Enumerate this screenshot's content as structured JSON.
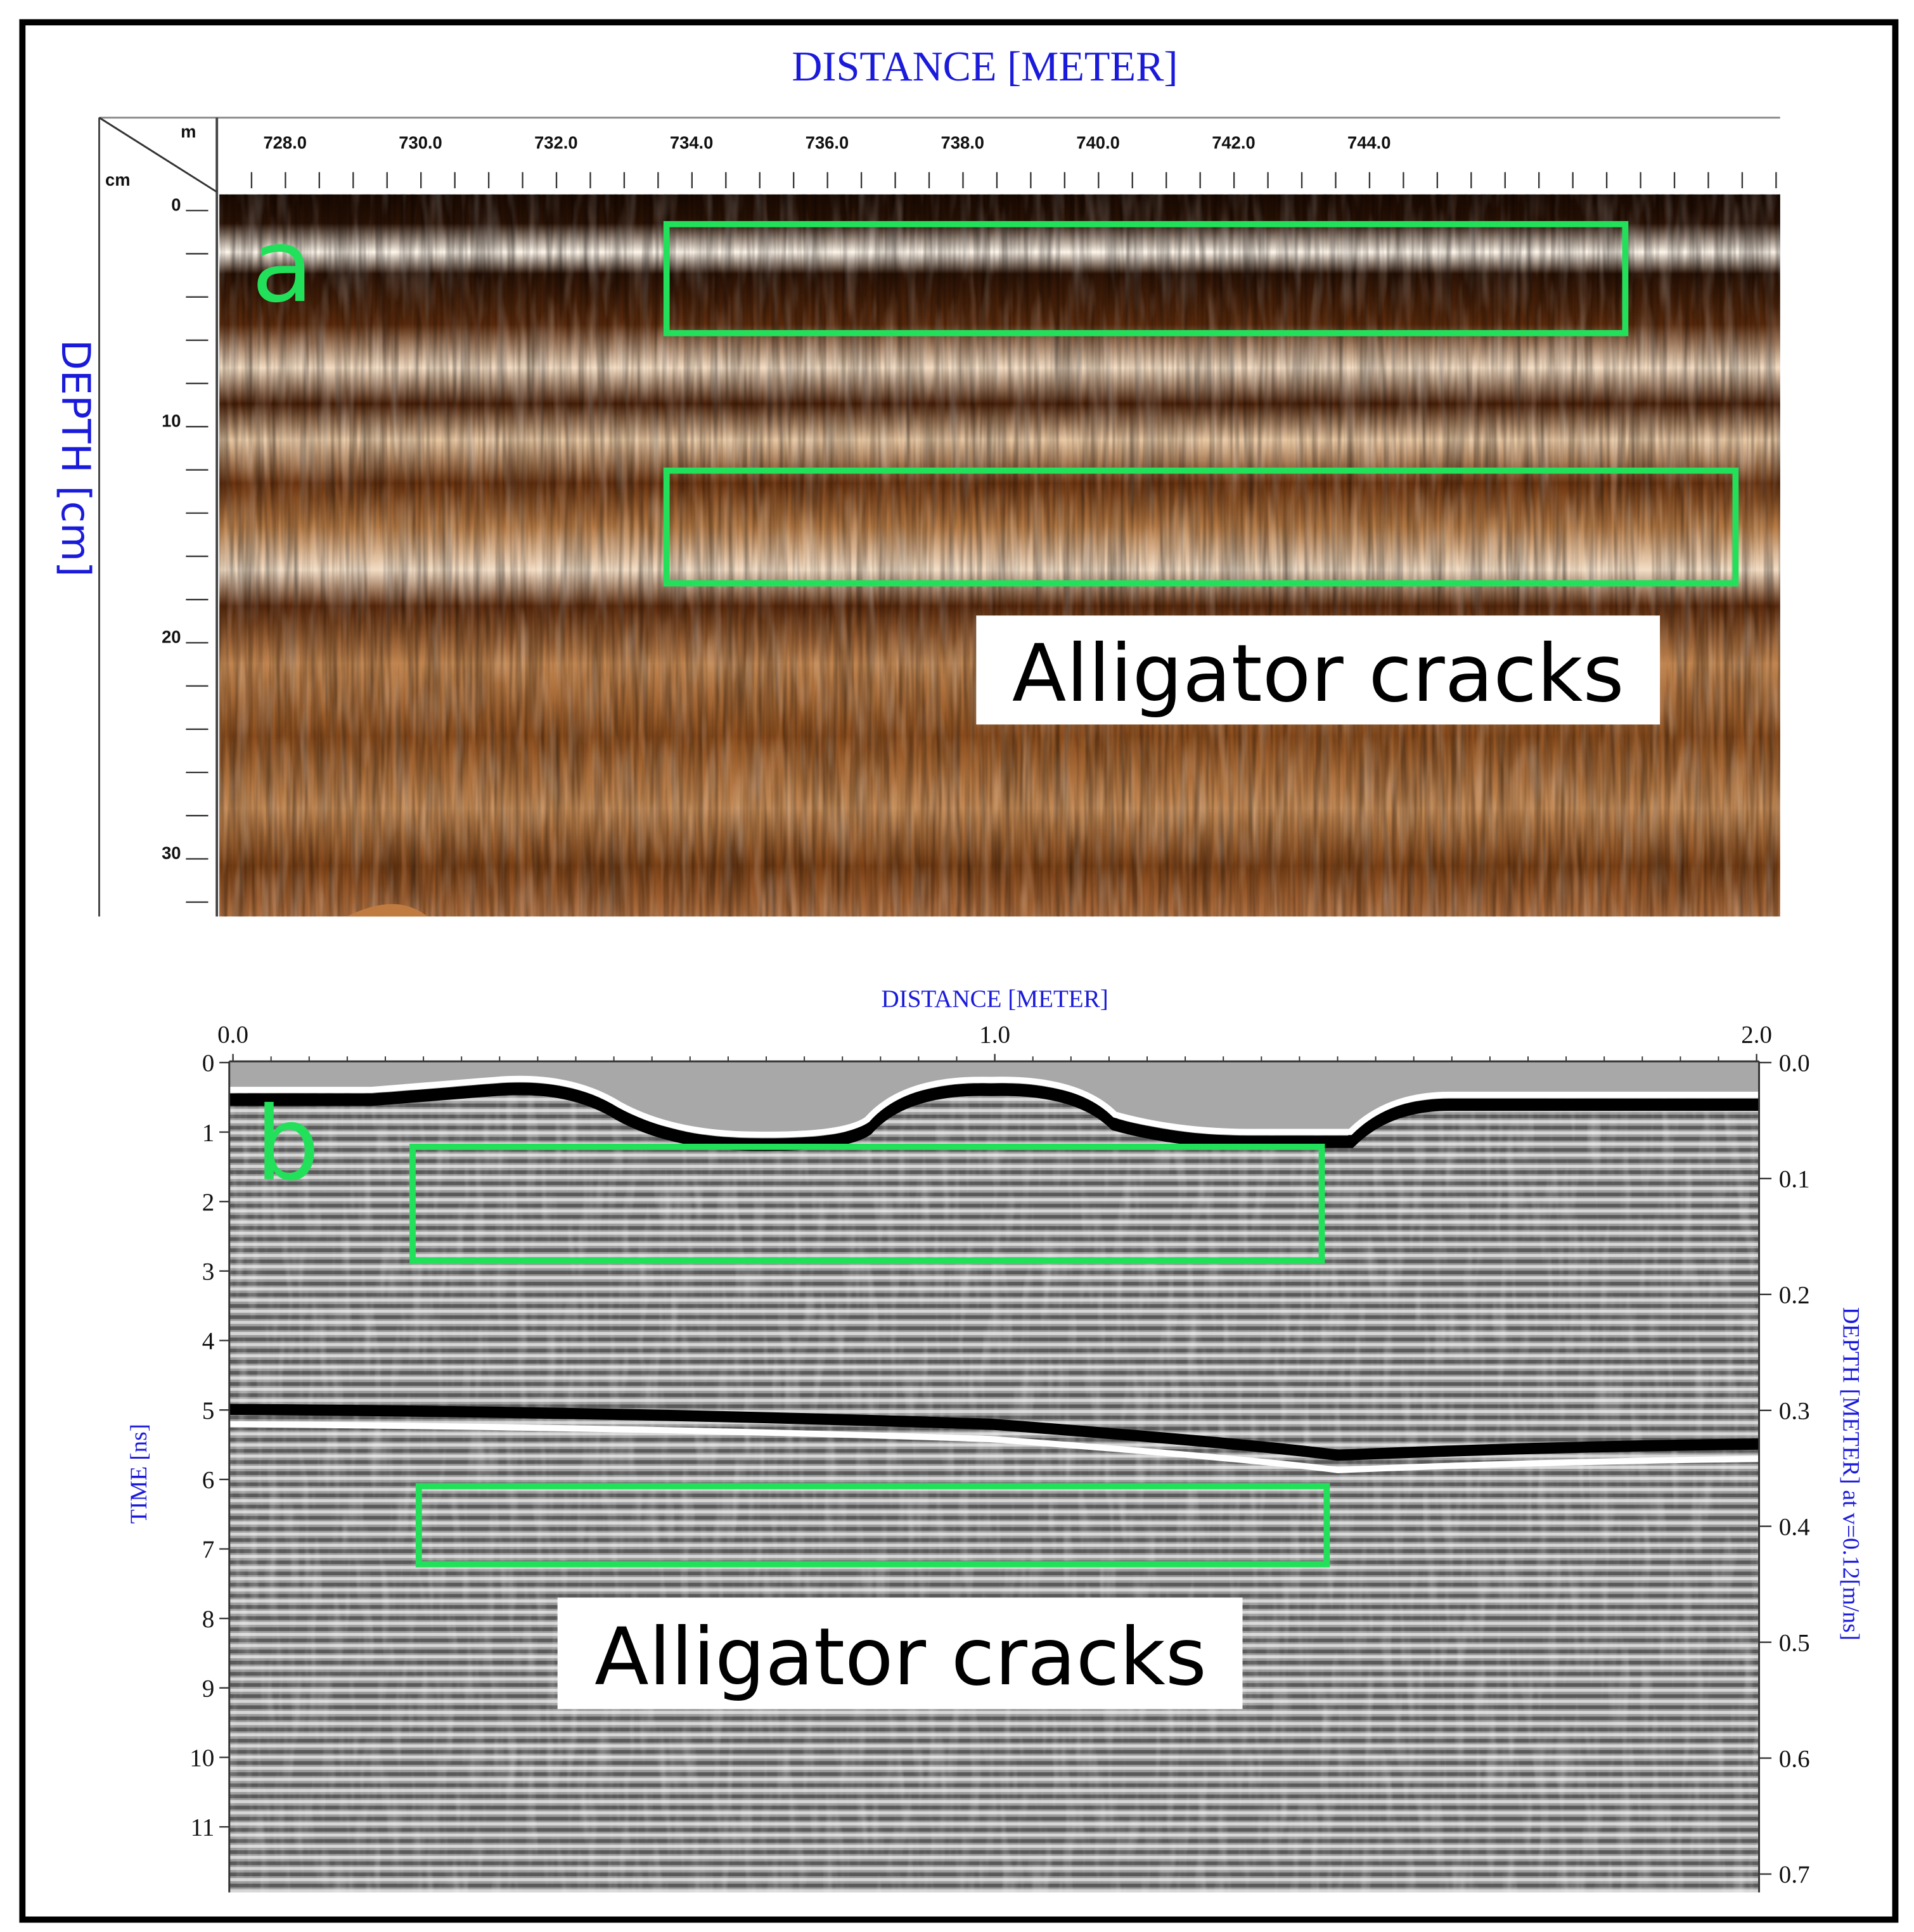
{
  "panel_a": {
    "label": "a",
    "title": "DISTANCE [METER]",
    "y_axis_title": "DEPTH [cm]",
    "x_unit": "m",
    "y_unit": "cm",
    "x_tick_labels": [
      "728.0",
      "730.0",
      "732.0",
      "734.0",
      "736.0",
      "738.0",
      "740.0",
      "742.0",
      "744.0"
    ],
    "y_tick_labels": [
      "0",
      "10",
      "20",
      "30"
    ],
    "annotation": "Alligator cracks"
  },
  "panel_b": {
    "label": "b",
    "title": "DISTANCE [METER]",
    "y_axis_title": "TIME [ns]",
    "y2_axis_title": "DEPTH [METER] at v=0.12[m/ns]",
    "x_tick_labels": [
      "0.0",
      "1.0",
      "2.0"
    ],
    "y_tick_labels": [
      "0",
      "1",
      "2",
      "3",
      "4",
      "5",
      "6",
      "7",
      "8",
      "9",
      "10",
      "11"
    ],
    "y2_tick_labels": [
      "0.0",
      "0.1",
      "0.2",
      "0.3",
      "0.4",
      "0.5",
      "0.6",
      "0.7"
    ],
    "annotation": "Alligator cracks"
  }
}
